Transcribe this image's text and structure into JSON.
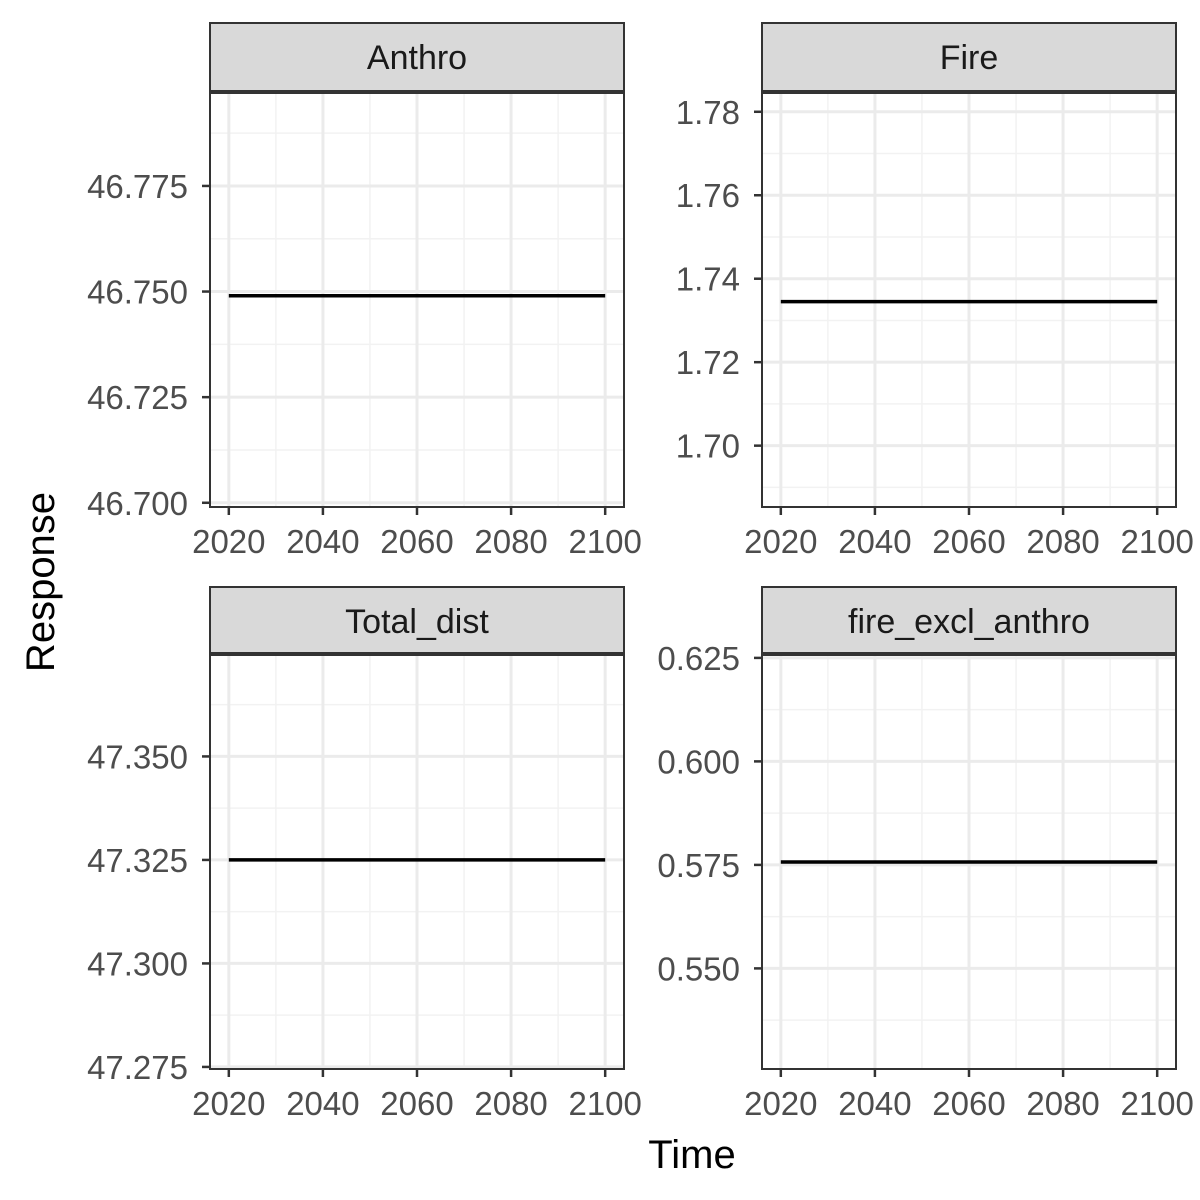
{
  "colors": {
    "strip_fill": "#d9d9d9",
    "frame": "#333333",
    "grid_major": "#ebebeb",
    "grid_minor": "#f2f2f2",
    "line": "#000000",
    "tick": "#333333"
  },
  "chart_data": {
    "type": "line",
    "layout": "facet-grid-2x2",
    "xlabel": "Time",
    "ylabel": "Response",
    "grid": true,
    "facets": [
      {
        "title": "Anthro",
        "x": [
          2020,
          2100
        ],
        "y": [
          46.749,
          46.749
        ],
        "xlim": [
          2016,
          2104
        ],
        "xticks": [
          2020,
          2040,
          2060,
          2080,
          2100
        ],
        "ylim": [
          46.699,
          46.797
        ],
        "yticks": [
          46.7,
          46.725,
          46.75,
          46.775
        ],
        "ytick_labels": [
          "46.700",
          "46.725",
          "46.750",
          "46.775"
        ]
      },
      {
        "title": "Fire",
        "x": [
          2020,
          2100
        ],
        "y": [
          1.7345,
          1.7345
        ],
        "xlim": [
          2016,
          2104
        ],
        "xticks": [
          2020,
          2040,
          2060,
          2080,
          2100
        ],
        "ylim": [
          1.6853,
          1.7845
        ],
        "yticks": [
          1.7,
          1.72,
          1.74,
          1.76,
          1.78
        ],
        "ytick_labels": [
          "1.70",
          "1.72",
          "1.74",
          "1.76",
          "1.78"
        ]
      },
      {
        "title": "Total_dist",
        "x": [
          2020,
          2100
        ],
        "y": [
          47.325,
          47.325
        ],
        "xlim": [
          2016,
          2104
        ],
        "xticks": [
          2020,
          2040,
          2060,
          2080,
          2100
        ],
        "ylim": [
          47.2745,
          47.3745
        ],
        "yticks": [
          47.275,
          47.3,
          47.325,
          47.35
        ],
        "ytick_labels": [
          "47.275",
          "47.300",
          "47.325",
          "47.350"
        ]
      },
      {
        "title": "fire_excl_anthro",
        "x": [
          2020,
          2100
        ],
        "y": [
          0.5757,
          0.5757
        ],
        "xlim": [
          2016,
          2104
        ],
        "xticks": [
          2020,
          2040,
          2060,
          2080,
          2100
        ],
        "ylim": [
          0.5257,
          0.6257
        ],
        "yticks": [
          0.55,
          0.575,
          0.6,
          0.625
        ],
        "ytick_labels": [
          "0.550",
          "0.575",
          "0.600",
          "0.625"
        ]
      }
    ]
  }
}
